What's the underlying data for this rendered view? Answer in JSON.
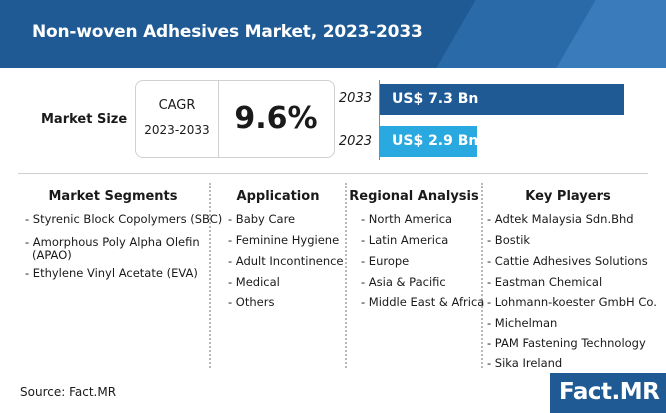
{
  "header": {
    "title": "Non-woven Adhesives Market, 2023-2033"
  },
  "market_size": {
    "label": "Market Size",
    "cagr_label": "CAGR",
    "cagr_period": "2023-2033",
    "cagr_value": "9.6%"
  },
  "chart_data": {
    "type": "bar",
    "orientation": "horizontal",
    "categories": [
      "2033",
      "2023"
    ],
    "values": [
      7.3,
      2.9
    ],
    "value_labels": [
      "US$ 7.3 Bn",
      "US$ 2.9 Bn"
    ],
    "colors": [
      "#1f5a94",
      "#2aa9e0"
    ],
    "xlim": [
      0,
      7.3
    ]
  },
  "columns": [
    {
      "heading": "Market Segments",
      "items": [
        "- Styrenic Block Copolymers (SBC)",
        "- Amorphous Poly Alpha Olefin",
        "(APAO)",
        "- Ethylene Vinyl Acetate (EVA)"
      ]
    },
    {
      "heading": "Application",
      "items": [
        "- Baby Care",
        "- Feminine Hygiene",
        "- Adult Incontinence",
        "- Medical",
        "- Others"
      ]
    },
    {
      "heading": "Regional Analysis",
      "items": [
        "- North America",
        "- Latin America",
        "- Europe",
        "- Asia & Pacific",
        "- Middle East & Africa"
      ]
    },
    {
      "heading": "Key Players",
      "items": [
        "- Adtek Malaysia Sdn.Bhd",
        "- Bostik",
        "- Cattie Adhesives Solutions",
        "- Eastman Chemical",
        "- Lohmann-koester GmbH Co.",
        "- Michelman",
        "- PAM Fastening Technology",
        "- Sika Ireland"
      ]
    }
  ],
  "footer": {
    "source": "Source: Fact.MR",
    "logo": "Fact.MR"
  }
}
